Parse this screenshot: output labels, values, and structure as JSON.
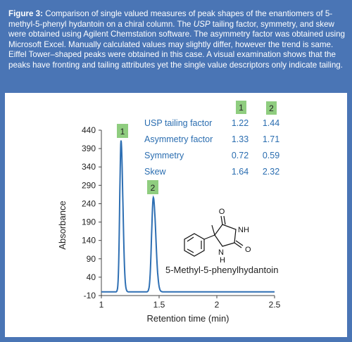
{
  "caption": {
    "label": "Figure 3:",
    "text_1": " Comparison of single valued measures of peak shapes of the enantiomers of 5-methyl-5-phenyl hydantoin on a chiral column. The ",
    "italic": "USP",
    "text_2": " tailing factor, symmetry, and skew were obtained using Agilent Chemstation software. The asymmetry factor was obtained using Microsoft Excel. Manually calculated values may slightly differ, however the trend is same. Eiffel Tower–shaped peaks were obtained in this case. A visual examination shows that the peaks have fronting and tailing attributes yet the single value descriptors only indicate tailing."
  },
  "colors": {
    "frame": "#4a75b5",
    "trace": "#2e6fb3",
    "table_text": "#2a6db0",
    "badge": "#8fcd7f"
  },
  "chart_data": {
    "type": "line",
    "xlabel": "Retention time (min)",
    "ylabel": "Absorbance",
    "xlim": [
      1,
      2.5
    ],
    "ylim": [
      -10,
      440
    ],
    "x_ticks": [
      1,
      1.5,
      2,
      2.5
    ],
    "y_ticks": [
      -10,
      40,
      90,
      140,
      190,
      240,
      290,
      340,
      390,
      440
    ],
    "baseline": 0,
    "series": [
      {
        "peak_x": 1.17,
        "peak_y": 412,
        "sigma": 0.011,
        "tail": 0.016
      },
      {
        "peak_x": 1.45,
        "peak_y": 257,
        "sigma": 0.015,
        "tail": 0.021
      }
    ],
    "peak_labels": [
      "1",
      "2"
    ],
    "table": {
      "columns": [
        "1",
        "2"
      ],
      "rows": [
        {
          "label": "USP tailing factor",
          "values": [
            "1.22",
            "1.44"
          ]
        },
        {
          "label": "Asymmetry factor",
          "values": [
            "1.33",
            "1.71"
          ]
        },
        {
          "label": "Symmetry",
          "values": [
            "0.72",
            "0.59"
          ]
        },
        {
          "label": "Skew",
          "values": [
            "1.64",
            "2.32"
          ]
        }
      ]
    },
    "molecule": {
      "name": "5-Methyl-5-phenylhydantoin",
      "atoms": [
        "O",
        "NH",
        "N",
        "H",
        "O"
      ]
    }
  }
}
